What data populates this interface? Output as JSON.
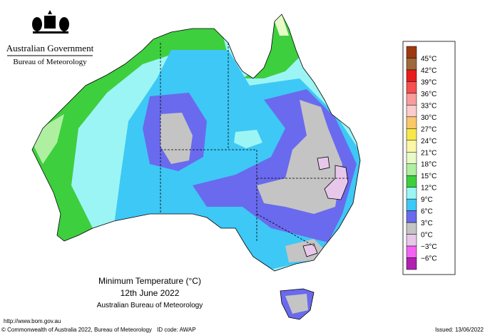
{
  "header": {
    "government": "Australian Government",
    "agency": "Bureau of Meteorology"
  },
  "map": {
    "title": "Minimum Temperature (°C)",
    "date": "12th June 2022",
    "source": "Australian Bureau of Meteorology"
  },
  "legend": {
    "labels": [
      "45°C",
      "42°C",
      "39°C",
      "36°C",
      "33°C",
      "30°C",
      "27°C",
      "24°C",
      "21°C",
      "18°C",
      "15°C",
      "12°C",
      "9°C",
      "6°C",
      "3°C",
      "0°C",
      "−3°C",
      "−6°C"
    ],
    "colors": [
      "#9e3a0f",
      "#a0693c",
      "#e81c1c",
      "#f55050",
      "#f99c9c",
      "#facccc",
      "#f9c86a",
      "#f7e84a",
      "#fbf7a8",
      "#e8fac8",
      "#aef0a0",
      "#3ecf3e",
      "#9cf5f5",
      "#3ec8f5",
      "#6a6aee",
      "#c4c4c4",
      "#e8c8ea",
      "#f462f4",
      "#b020b0"
    ]
  },
  "footer": {
    "url": "http://www.bom.gov.au",
    "copyright": "© Commonwealth of Australia 2022, Bureau of Meteorology",
    "id_code": "ID code: AWAP",
    "issued": "Issued: 13/06/2022"
  }
}
